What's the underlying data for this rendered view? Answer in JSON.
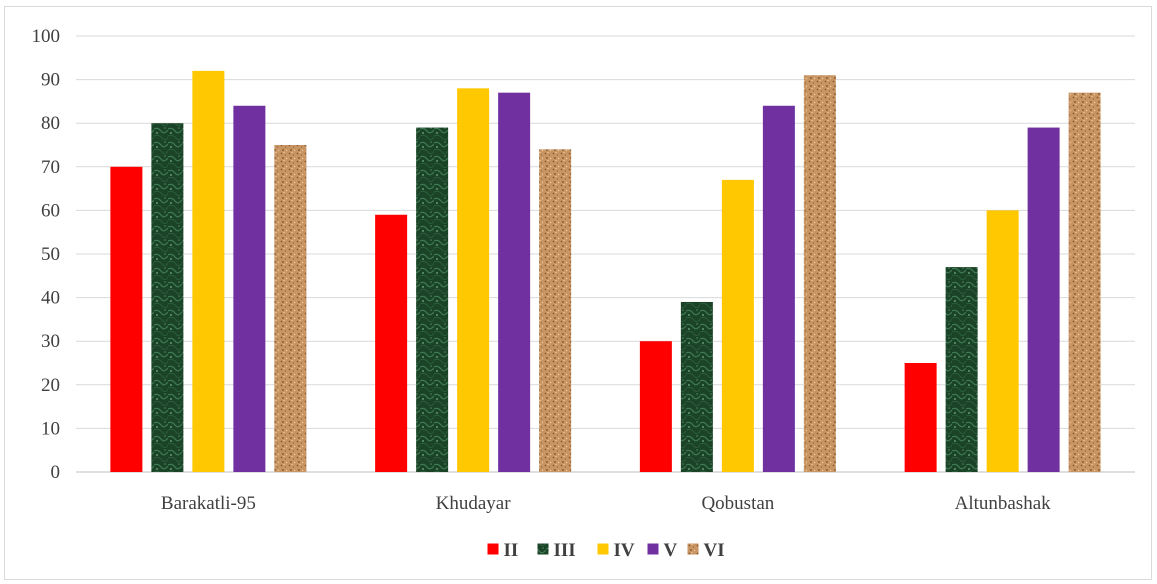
{
  "chart_data": {
    "type": "bar",
    "categories": [
      "Barakatli-95",
      "Khudayar",
      "Qobustan",
      "Altunbashak"
    ],
    "series": [
      {
        "name": "II",
        "values": [
          70,
          59,
          30,
          25
        ],
        "color": "#ff0000",
        "pattern": "solid"
      },
      {
        "name": "III",
        "values": [
          80,
          79,
          39,
          47
        ],
        "color": "#1e4a2c",
        "pattern": "green-marble"
      },
      {
        "name": "IV",
        "values": [
          92,
          88,
          67,
          60
        ],
        "color": "#ffc800",
        "pattern": "solid"
      },
      {
        "name": "V",
        "values": [
          84,
          87,
          84,
          79
        ],
        "color": "#7030a0",
        "pattern": "solid"
      },
      {
        "name": "VI",
        "values": [
          75,
          74,
          91,
          87
        ],
        "color": "#c8925a",
        "pattern": "cork"
      }
    ],
    "ylim": [
      0,
      100
    ],
    "yticks": [
      0,
      10,
      20,
      30,
      40,
      50,
      60,
      70,
      80,
      90,
      100
    ],
    "grid": true,
    "legend_position": "bottom",
    "title": "",
    "xlabel": "",
    "ylabel": ""
  }
}
